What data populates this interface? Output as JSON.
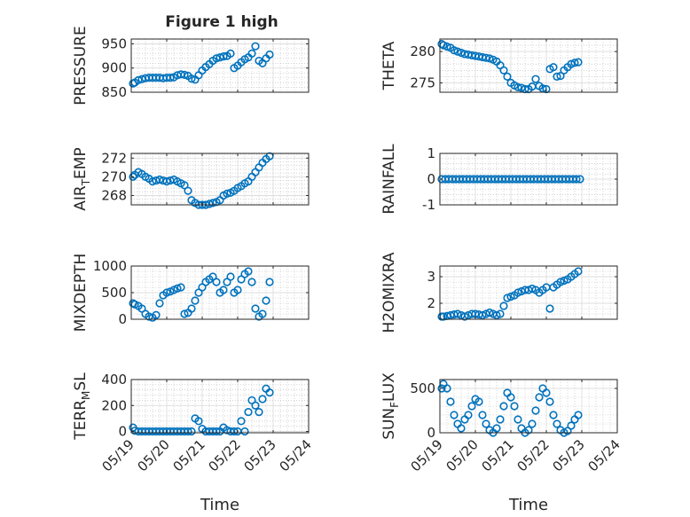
{
  "figure_title": "Figure 1 high",
  "colors": {
    "marker": "#0072bd",
    "axes": "#262626",
    "grid": "#b8b8b8"
  },
  "chart_data": [
    {
      "type": "scatter",
      "ylabel": "PRESSURE",
      "ylabel_sub": "",
      "ylabel_post": "",
      "ylim": [
        850,
        960
      ],
      "yticks": [
        850,
        900,
        950
      ],
      "ytick_labels": [
        "850",
        "900",
        "950"
      ],
      "xlim": [
        0,
        5
      ],
      "grid": "on",
      "x": [
        0.05,
        0.1,
        0.2,
        0.3,
        0.4,
        0.5,
        0.6,
        0.7,
        0.8,
        0.9,
        1.0,
        1.1,
        1.2,
        1.3,
        1.4,
        1.5,
        1.6,
        1.7,
        1.8,
        1.9,
        2.0,
        2.1,
        2.2,
        2.3,
        2.4,
        2.5,
        2.6,
        2.7,
        2.8,
        2.9,
        3.0,
        3.1,
        3.2,
        3.3,
        3.4,
        3.5,
        3.6,
        3.7,
        3.8,
        3.9
      ],
      "y": [
        868,
        870,
        875,
        877,
        879,
        880,
        880,
        880,
        880,
        879,
        880,
        880,
        881,
        885,
        887,
        886,
        884,
        878,
        876,
        885,
        895,
        902,
        908,
        915,
        920,
        922,
        924,
        925,
        930,
        900,
        905,
        912,
        918,
        922,
        930,
        945,
        915,
        910,
        920,
        928
      ]
    },
    {
      "type": "scatter",
      "ylabel": "THETA",
      "ylabel_sub": "",
      "ylabel_post": "",
      "ylim": [
        273.5,
        282
      ],
      "yticks": [
        275,
        280
      ],
      "ytick_labels": [
        "275",
        "280"
      ],
      "xlim": [
        0,
        5
      ],
      "grid": "on",
      "x": [
        0.05,
        0.1,
        0.2,
        0.3,
        0.4,
        0.5,
        0.6,
        0.7,
        0.8,
        0.9,
        1.0,
        1.1,
        1.2,
        1.3,
        1.4,
        1.5,
        1.6,
        1.7,
        1.8,
        1.9,
        2.0,
        2.1,
        2.2,
        2.3,
        2.4,
        2.5,
        2.6,
        2.7,
        2.8,
        2.9,
        3.0,
        3.1,
        3.2,
        3.3,
        3.4,
        3.5,
        3.6,
        3.7,
        3.8,
        3.9
      ],
      "y": [
        281.2,
        281,
        280.8,
        280.6,
        280.2,
        280,
        279.8,
        279.6,
        279.5,
        279.4,
        279.3,
        279.2,
        279.1,
        279,
        278.9,
        278.7,
        278.4,
        277.8,
        277,
        276,
        275,
        274.6,
        274.3,
        274.2,
        274,
        274,
        274.4,
        275.6,
        274.5,
        274.1,
        274,
        277.2,
        277.5,
        276,
        276.1,
        277,
        277.5,
        278,
        278.2,
        278.3
      ]
    },
    {
      "type": "scatter",
      "ylabel": "AIR",
      "ylabel_sub": "T",
      "ylabel_post": "EMP",
      "ylim": [
        267,
        272.5
      ],
      "yticks": [
        268,
        270,
        272
      ],
      "ytick_labels": [
        "268",
        "270",
        "272"
      ],
      "xlim": [
        0,
        5
      ],
      "grid": "on",
      "x": [
        0.05,
        0.1,
        0.2,
        0.3,
        0.4,
        0.5,
        0.6,
        0.7,
        0.8,
        0.9,
        1.0,
        1.1,
        1.2,
        1.3,
        1.4,
        1.5,
        1.6,
        1.7,
        1.8,
        1.9,
        2.0,
        2.1,
        2.2,
        2.3,
        2.4,
        2.5,
        2.6,
        2.7,
        2.8,
        2.9,
        3.0,
        3.1,
        3.2,
        3.3,
        3.4,
        3.5,
        3.6,
        3.7,
        3.8,
        3.9
      ],
      "y": [
        270,
        270.2,
        270.5,
        270.3,
        270,
        269.8,
        269.5,
        269.6,
        269.7,
        269.6,
        269.5,
        269.6,
        269.7,
        269.5,
        269.3,
        269.1,
        268.5,
        267.5,
        267.2,
        267,
        266.9,
        267,
        267.1,
        267.2,
        267.3,
        267.5,
        268,
        268.2,
        268.3,
        268.5,
        268.8,
        269,
        269.3,
        269.5,
        270,
        270.5,
        271,
        271.5,
        271.9,
        272.2
      ]
    },
    {
      "type": "scatter",
      "ylabel": "RAINFALL",
      "ylabel_sub": "",
      "ylabel_post": "",
      "ylim": [
        -1,
        1
      ],
      "yticks": [
        -1,
        0,
        1
      ],
      "ytick_labels": [
        "-1",
        "0",
        "1"
      ],
      "xlim": [
        0,
        5
      ],
      "grid": "on",
      "x": [
        0.05,
        0.15,
        0.25,
        0.35,
        0.45,
        0.55,
        0.65,
        0.75,
        0.85,
        0.95,
        1.05,
        1.15,
        1.25,
        1.35,
        1.45,
        1.55,
        1.65,
        1.75,
        1.85,
        1.95,
        2.05,
        2.15,
        2.25,
        2.35,
        2.45,
        2.55,
        2.65,
        2.75,
        2.85,
        2.95,
        3.05,
        3.15,
        3.25,
        3.35,
        3.45,
        3.55,
        3.65,
        3.75,
        3.85,
        3.95
      ],
      "y": [
        0,
        0,
        0,
        0,
        0,
        0,
        0,
        0,
        0,
        0,
        0,
        0,
        0,
        0,
        0,
        0,
        0,
        0,
        0,
        0,
        0,
        0,
        0,
        0,
        0,
        0,
        0,
        0,
        0,
        0,
        0,
        0,
        0,
        0,
        0,
        0,
        0,
        0,
        0,
        0
      ]
    },
    {
      "type": "scatter",
      "ylabel": "MIXDEPTH",
      "ylabel_sub": "",
      "ylabel_post": "",
      "ylim": [
        0,
        1000
      ],
      "yticks": [
        0,
        500,
        1000
      ],
      "ytick_labels": [
        "0",
        "500",
        "1000"
      ],
      "xlim": [
        0,
        5
      ],
      "grid": "on",
      "x": [
        0.05,
        0.1,
        0.2,
        0.3,
        0.4,
        0.5,
        0.6,
        0.7,
        0.8,
        0.9,
        1.0,
        1.1,
        1.2,
        1.3,
        1.4,
        1.5,
        1.6,
        1.7,
        1.8,
        1.9,
        2.0,
        2.1,
        2.2,
        2.3,
        2.4,
        2.5,
        2.6,
        2.7,
        2.8,
        2.9,
        3.0,
        3.1,
        3.2,
        3.3,
        3.4,
        3.5,
        3.6,
        3.7,
        3.8,
        3.9
      ],
      "y": [
        300,
        280,
        250,
        200,
        100,
        50,
        30,
        80,
        300,
        450,
        500,
        520,
        550,
        580,
        600,
        100,
        120,
        200,
        350,
        500,
        600,
        700,
        750,
        800,
        700,
        500,
        550,
        700,
        800,
        500,
        550,
        750,
        850,
        900,
        700,
        200,
        50,
        100,
        350,
        700
      ]
    },
    {
      "type": "scatter",
      "ylabel": "H2OMIXRA",
      "ylabel_sub": "",
      "ylabel_post": "",
      "ylim": [
        1.4,
        3.4
      ],
      "yticks": [
        2,
        3
      ],
      "ytick_labels": [
        "2",
        "3"
      ],
      "xlim": [
        0,
        5
      ],
      "grid": "on",
      "x": [
        0.05,
        0.1,
        0.2,
        0.3,
        0.4,
        0.5,
        0.6,
        0.7,
        0.8,
        0.9,
        1.0,
        1.1,
        1.2,
        1.3,
        1.4,
        1.5,
        1.6,
        1.7,
        1.8,
        1.9,
        2.0,
        2.1,
        2.2,
        2.3,
        2.4,
        2.5,
        2.6,
        2.7,
        2.8,
        2.9,
        3.0,
        3.1,
        3.2,
        3.3,
        3.4,
        3.5,
        3.6,
        3.7,
        3.8,
        3.9
      ],
      "y": [
        1.5,
        1.5,
        1.52,
        1.55,
        1.58,
        1.6,
        1.55,
        1.5,
        1.55,
        1.6,
        1.6,
        1.58,
        1.55,
        1.6,
        1.65,
        1.6,
        1.55,
        1.6,
        1.9,
        2.2,
        2.25,
        2.3,
        2.4,
        2.45,
        2.5,
        2.5,
        2.55,
        2.5,
        2.4,
        2.5,
        2.6,
        1.8,
        2.6,
        2.7,
        2.8,
        2.85,
        2.9,
        3.0,
        3.1,
        3.2
      ]
    },
    {
      "type": "scatter",
      "ylabel": "TERR",
      "ylabel_sub": "M",
      "ylabel_post": "SL",
      "ylim": [
        -10,
        400
      ],
      "yticks": [
        0,
        200,
        400
      ],
      "ytick_labels": [
        "0",
        "200",
        "400"
      ],
      "xlim": [
        0,
        5
      ],
      "grid": "on",
      "xtick_labels": [
        "05/19",
        "05/20",
        "05/21",
        "05/22",
        "05/23",
        "05/24"
      ],
      "xlabel": "Time",
      "x": [
        0.05,
        0.1,
        0.2,
        0.3,
        0.4,
        0.5,
        0.6,
        0.7,
        0.8,
        0.9,
        1.0,
        1.1,
        1.2,
        1.3,
        1.4,
        1.5,
        1.6,
        1.7,
        1.8,
        1.9,
        2.0,
        2.1,
        2.2,
        2.3,
        2.4,
        2.5,
        2.6,
        2.7,
        2.8,
        2.9,
        3.0,
        3.1,
        3.2,
        3.3,
        3.4,
        3.5,
        3.6,
        3.7,
        3.8,
        3.9
      ],
      "y": [
        30,
        5,
        0,
        0,
        0,
        0,
        0,
        0,
        0,
        0,
        0,
        0,
        0,
        0,
        0,
        0,
        0,
        0,
        100,
        80,
        20,
        0,
        0,
        0,
        0,
        0,
        30,
        10,
        0,
        0,
        0,
        80,
        0,
        150,
        240,
        200,
        150,
        250,
        330,
        300
      ]
    },
    {
      "type": "scatter",
      "ylabel": "SUN",
      "ylabel_sub": "F",
      "ylabel_post": "LUX",
      "ylim": [
        0,
        600
      ],
      "yticks": [
        0,
        500
      ],
      "ytick_labels": [
        "0",
        "500"
      ],
      "xlim": [
        0,
        5
      ],
      "grid": "on",
      "xtick_labels": [
        "05/19",
        "05/20",
        "05/21",
        "05/22",
        "05/23",
        "05/24"
      ],
      "xlabel": "Time",
      "x": [
        0.05,
        0.1,
        0.2,
        0.3,
        0.4,
        0.5,
        0.6,
        0.7,
        0.8,
        0.9,
        1.0,
        1.1,
        1.2,
        1.3,
        1.4,
        1.5,
        1.6,
        1.7,
        1.8,
        1.9,
        2.0,
        2.1,
        2.2,
        2.3,
        2.4,
        2.5,
        2.6,
        2.7,
        2.8,
        2.9,
        3.0,
        3.1,
        3.2,
        3.3,
        3.4,
        3.5,
        3.6,
        3.7,
        3.8,
        3.9
      ],
      "y": [
        500,
        550,
        500,
        350,
        200,
        100,
        50,
        150,
        200,
        300,
        380,
        350,
        200,
        100,
        30,
        0,
        50,
        150,
        300,
        450,
        400,
        300,
        150,
        50,
        0,
        30,
        100,
        250,
        400,
        500,
        450,
        350,
        200,
        100,
        30,
        0,
        20,
        80,
        150,
        200
      ]
    }
  ]
}
